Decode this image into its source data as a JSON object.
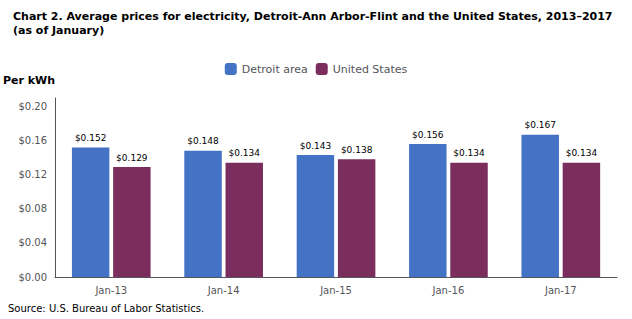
{
  "chart_data": {
    "type": "bar",
    "title": "Chart 2. Average prices for electricity, Detroit-Ann Arbor-Flint and the United States, 2013–2017",
    "subtitle": "(as of January)",
    "ylabel": "Per kWh",
    "annotations": [
      "Source: U.S. Bureau of Labor Statistics."
    ],
    "categories": [
      "Jan-13",
      "Jan-14",
      "Jan-15",
      "Jan-16",
      "Jan-17"
    ],
    "series": [
      {
        "name": "Detroit area",
        "color": "#4472C4",
        "values": [
          0.152,
          0.148,
          0.143,
          0.156,
          0.167
        ],
        "value_labels": [
          "$0.152",
          "$0.148",
          "$0.143",
          "$0.156",
          "$0.167"
        ]
      },
      {
        "name": "United States",
        "color": "#7B2D5E",
        "values": [
          0.129,
          0.134,
          0.138,
          0.134,
          0.134
        ],
        "value_labels": [
          "$0.129",
          "$0.134",
          "$0.138",
          "$0.134",
          "$0.134"
        ]
      }
    ],
    "ylim": [
      0.0,
      0.21
    ],
    "yticks": [
      {
        "value": 0.0,
        "label": "$0.00"
      },
      {
        "value": 0.04,
        "label": "$0.04"
      },
      {
        "value": 0.08,
        "label": "$0.08"
      },
      {
        "value": 0.12,
        "label": "$0.12"
      },
      {
        "value": 0.16,
        "label": "$0.16"
      },
      {
        "value": 0.2,
        "label": "$0.20"
      }
    ],
    "data_labels": true,
    "grid": false,
    "legend": "top"
  }
}
